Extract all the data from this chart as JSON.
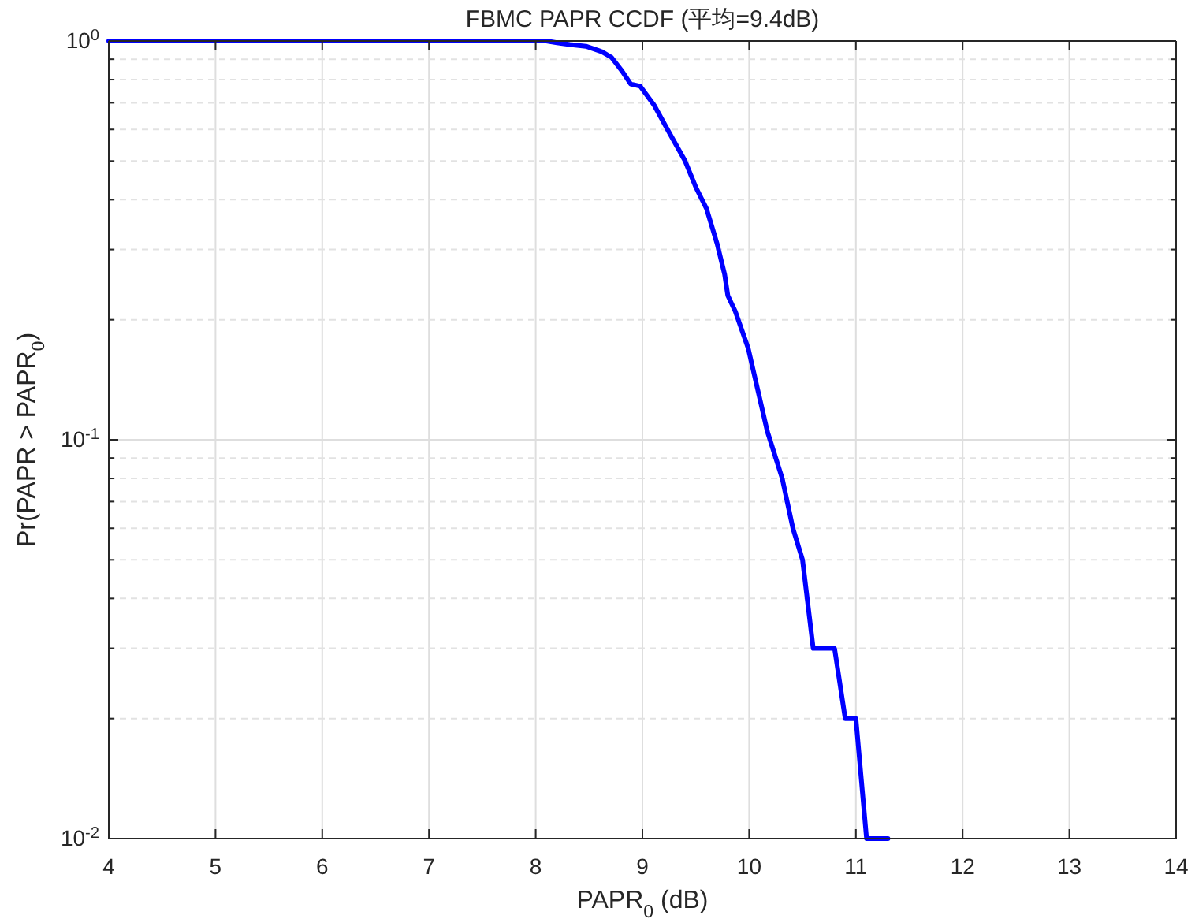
{
  "chart_data": {
    "type": "line",
    "title": "FBMC PAPR CCDF (平均=9.4dB)",
    "xlabel": "PAPR$_{0}$ (dB)",
    "ylabel": "Pr(PAPR > PAPR$_{0}$)",
    "xlim": [
      4,
      14
    ],
    "xticks": [
      4,
      5,
      6,
      7,
      8,
      9,
      10,
      11,
      12,
      13,
      14
    ],
    "ylim": [
      0.01,
      1
    ],
    "yticks": [
      {
        "value": 1,
        "label": "10$^{0}$"
      },
      {
        "value": 0.1,
        "label": "10$^{-1}$"
      },
      {
        "value": 0.01,
        "label": "10$^{-2}$"
      }
    ],
    "log": "y",
    "grid": true,
    "line_style": "solid",
    "series": [
      {
        "color": "#0000ff",
        "x": [
          4,
          8.1,
          8.2,
          8.32,
          8.47,
          8.62,
          8.71,
          8.81,
          8.89,
          8.98,
          9.11,
          9.25,
          9.4,
          9.5,
          9.6,
          9.7,
          9.77,
          9.8,
          9.87,
          9.99,
          10.17,
          10.31,
          10.41,
          10.5,
          10.6,
          10.8,
          10.9,
          11.0,
          11.1,
          11.3
        ],
        "values": [
          1,
          1,
          0.99,
          0.98,
          0.97,
          0.94,
          0.91,
          0.84,
          0.78,
          0.77,
          0.69,
          0.59,
          0.5,
          0.43,
          0.38,
          0.31,
          0.26,
          0.23,
          0.21,
          0.17,
          0.105,
          0.08,
          0.06,
          0.05,
          0.03,
          0.03,
          0.02,
          0.02,
          0.01,
          0.01
        ]
      }
    ]
  }
}
